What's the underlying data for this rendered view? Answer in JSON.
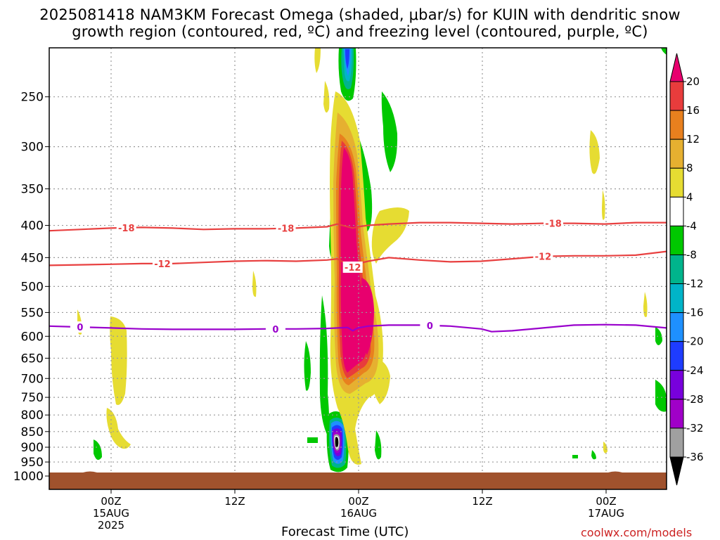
{
  "title": {
    "line1": "2025081418 NAM3KM Forecast Omega (shaded, μbar/s) for KUIN with dendritic snow",
    "line2": "growth region (contoured, red, ºC) and freezing level (contoured, purple, ºC)"
  },
  "credit": "coolwx.com/models",
  "colors": {
    "temp_contour": "#e84040",
    "freezing_contour": "#9900cc",
    "ground": "#a0522d",
    "grid": "#999999"
  },
  "chart_data": {
    "type": "heatmap",
    "xlabel": "Forecast Time (UTC)",
    "ylabel": "",
    "y_axis_unit": "hPa",
    "y_axis_reversed": true,
    "ylim": [
      1000,
      200
    ],
    "grid": true,
    "x_ticks": [
      {
        "label": "00Z",
        "sub1": "15AUG",
        "sub2": "2025",
        "hours": 6
      },
      {
        "label": "12Z",
        "sub1": "",
        "sub2": "",
        "hours": 18
      },
      {
        "label": "00Z",
        "sub1": "16AUG",
        "sub2": "",
        "hours": 30
      },
      {
        "label": "12Z",
        "sub1": "",
        "sub2": "",
        "hours": 42
      },
      {
        "label": "00Z",
        "sub1": "17AUG",
        "sub2": "",
        "hours": 54
      }
    ],
    "xlim_hours": [
      0,
      60
    ],
    "y_ticks": [
      250,
      300,
      350,
      400,
      450,
      500,
      550,
      600,
      650,
      700,
      750,
      800,
      850,
      900,
      950,
      1000
    ],
    "colorbar": {
      "labels": [
        "20",
        "16",
        "12",
        "8",
        "4",
        "-4",
        "-8",
        "-12",
        "-16",
        "-20",
        "-24",
        "-28",
        "-32",
        "-36"
      ],
      "colors": [
        "#e8006e",
        "#e83c3c",
        "#e8801e",
        "#e6b030",
        "#e6dc32",
        "#ffffff",
        "#00c800",
        "#00b48c",
        "#00b4c8",
        "#1e90ff",
        "#1e3cff",
        "#7800dc",
        "#a000c8",
        "#a0a0a0",
        "#000000"
      ]
    },
    "contours": [
      {
        "name": "-18",
        "kind": "temperature",
        "labels": [
          "-18",
          "-18",
          "-18"
        ],
        "points": [
          [
            0,
            408
          ],
          [
            3,
            406
          ],
          [
            6,
            404
          ],
          [
            9,
            403
          ],
          [
            12,
            404
          ],
          [
            15,
            406
          ],
          [
            18,
            405
          ],
          [
            21,
            405
          ],
          [
            24,
            404
          ],
          [
            27,
            402
          ],
          [
            28,
            398
          ],
          [
            29.5,
            404
          ],
          [
            30,
            402
          ],
          [
            31,
            400
          ],
          [
            33,
            398
          ],
          [
            36,
            396
          ],
          [
            39,
            396
          ],
          [
            42,
            397
          ],
          [
            45,
            398
          ],
          [
            48,
            397
          ],
          [
            51,
            397
          ],
          [
            54,
            398
          ],
          [
            57,
            396
          ],
          [
            60,
            396
          ]
        ]
      },
      {
        "name": "-12",
        "kind": "temperature",
        "labels": [
          "-12",
          "-12",
          "-12"
        ],
        "points": [
          [
            0,
            463
          ],
          [
            3,
            462
          ],
          [
            6,
            461
          ],
          [
            9,
            460
          ],
          [
            12,
            460
          ],
          [
            15,
            458
          ],
          [
            18,
            456
          ],
          [
            21,
            455
          ],
          [
            24,
            456
          ],
          [
            27,
            454
          ],
          [
            28,
            452
          ],
          [
            29.5,
            466
          ],
          [
            30,
            460
          ],
          [
            31,
            456
          ],
          [
            33,
            450
          ],
          [
            36,
            454
          ],
          [
            39,
            457
          ],
          [
            42,
            456
          ],
          [
            45,
            452
          ],
          [
            48,
            448
          ],
          [
            51,
            447
          ],
          [
            54,
            447
          ],
          [
            57,
            446
          ],
          [
            60,
            440
          ]
        ]
      },
      {
        "name": "0",
        "kind": "freezing",
        "labels": [
          "0",
          "0",
          "0"
        ],
        "points": [
          [
            0,
            578
          ],
          [
            3,
            580
          ],
          [
            6,
            582
          ],
          [
            9,
            584
          ],
          [
            12,
            585
          ],
          [
            15,
            585
          ],
          [
            18,
            585
          ],
          [
            21,
            584
          ],
          [
            24,
            584
          ],
          [
            27,
            583
          ],
          [
            29,
            581
          ],
          [
            29.5,
            588
          ],
          [
            30,
            582
          ],
          [
            31,
            578
          ],
          [
            33,
            576
          ],
          [
            36,
            576
          ],
          [
            39,
            578
          ],
          [
            42,
            584
          ],
          [
            43,
            590
          ],
          [
            45,
            588
          ],
          [
            48,
            582
          ],
          [
            51,
            576
          ],
          [
            54,
            575
          ],
          [
            57,
            576
          ],
          [
            60,
            582
          ]
        ]
      }
    ]
  }
}
